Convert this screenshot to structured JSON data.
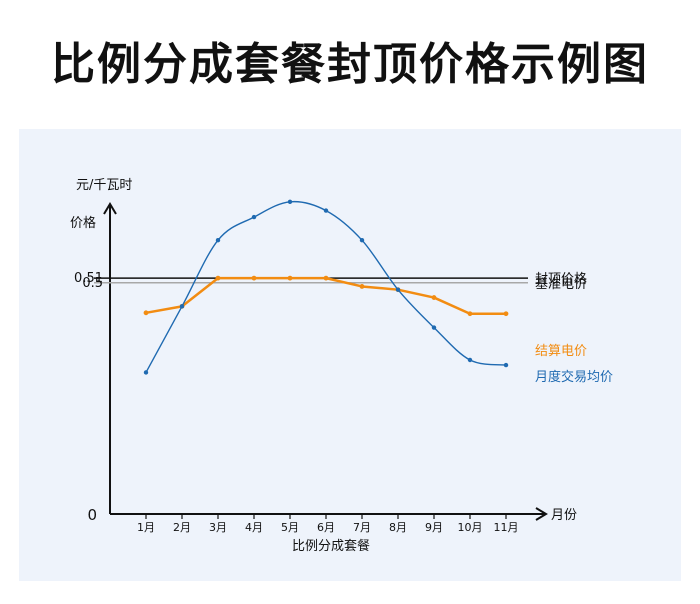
{
  "page": {
    "title": "比例分成套餐封顶价格示例图"
  },
  "chart_data": {
    "type": "line",
    "ylabel_unit": "元/千瓦时",
    "ylabel": "价格",
    "xlabel_axis": "月份",
    "xlabel": "比例分成套餐",
    "y_zero_label": "0",
    "categories": [
      "1月",
      "2月",
      "3月",
      "4月",
      "5月",
      "6月",
      "7月",
      "8月",
      "9月",
      "10月",
      "11月"
    ],
    "ylim": [
      0,
      0.72
    ],
    "reference_lines": [
      {
        "name": "封顶价格",
        "value": 0.51,
        "tick_label": "0.51",
        "color": "#111111"
      },
      {
        "name": "基准电价",
        "value": 0.5,
        "tick_label": "0.5",
        "color": "#a8a8a8"
      }
    ],
    "series": [
      {
        "name": "结算电价",
        "color": "#f28c12",
        "values": [
          0.435,
          0.449,
          0.51,
          0.51,
          0.51,
          0.51,
          0.492,
          0.485,
          0.468,
          0.433,
          0.433
        ]
      },
      {
        "name": "月度交易均价",
        "color": "#1f6ab1",
        "values": [
          0.306,
          0.449,
          0.592,
          0.642,
          0.675,
          0.656,
          0.592,
          0.485,
          0.403,
          0.333,
          0.322
        ]
      }
    ],
    "grid": false,
    "legend": "right"
  }
}
